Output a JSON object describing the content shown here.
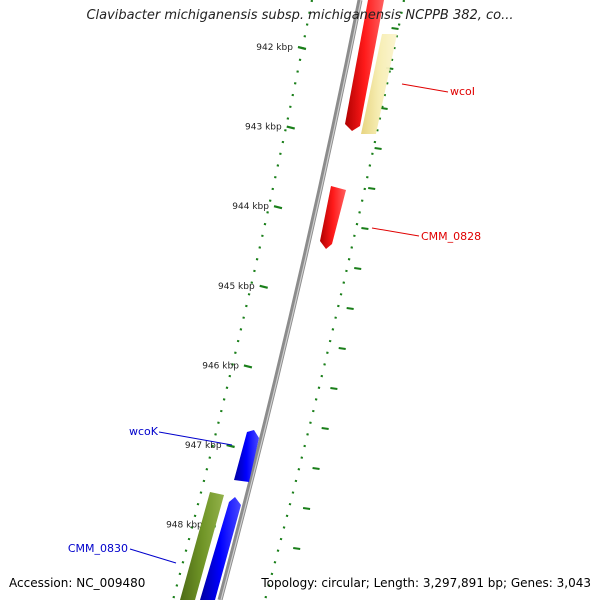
{
  "title": "Clavibacter michiganensis subsp. michiganensis NCPPB 382, co...",
  "footer": {
    "accession": "Accession: NC_009480",
    "topology": "Topology: circular; Length: 3,297,891 bp; Genes: 3,043"
  },
  "colors": {
    "tick": "#1a7f1a",
    "backbone": "#8c8c8c",
    "gene_red": "#ff0000",
    "gene_pale": "#f3e7a0",
    "gene_blue": "#0000ff",
    "gene_olive": "#6b8e23",
    "label_red": "#e00000",
    "label_blue": "#0000cc"
  },
  "scale": {
    "unit": "kbp",
    "ticks": [
      {
        "kbp": 942,
        "label": "942 kbp"
      },
      {
        "kbp": 943,
        "label": "943 kbp"
      },
      {
        "kbp": 944,
        "label": "944 kbp"
      },
      {
        "kbp": 945,
        "label": "945 kbp"
      },
      {
        "kbp": 946,
        "label": "946 kbp"
      },
      {
        "kbp": 947,
        "label": "947 kbp"
      },
      {
        "kbp": 948,
        "label": "948 kbp"
      }
    ]
  },
  "genes": [
    {
      "name": "wcoI",
      "strand": "+",
      "color": "gene_pale"
    },
    {
      "name": "CMM_0828",
      "strand": "+",
      "color": "gene_red"
    },
    {
      "name": "wcoK",
      "strand": "-",
      "color": "gene_blue"
    },
    {
      "name": "CMM_0830",
      "strand": "-",
      "color": "gene_olive"
    }
  ]
}
